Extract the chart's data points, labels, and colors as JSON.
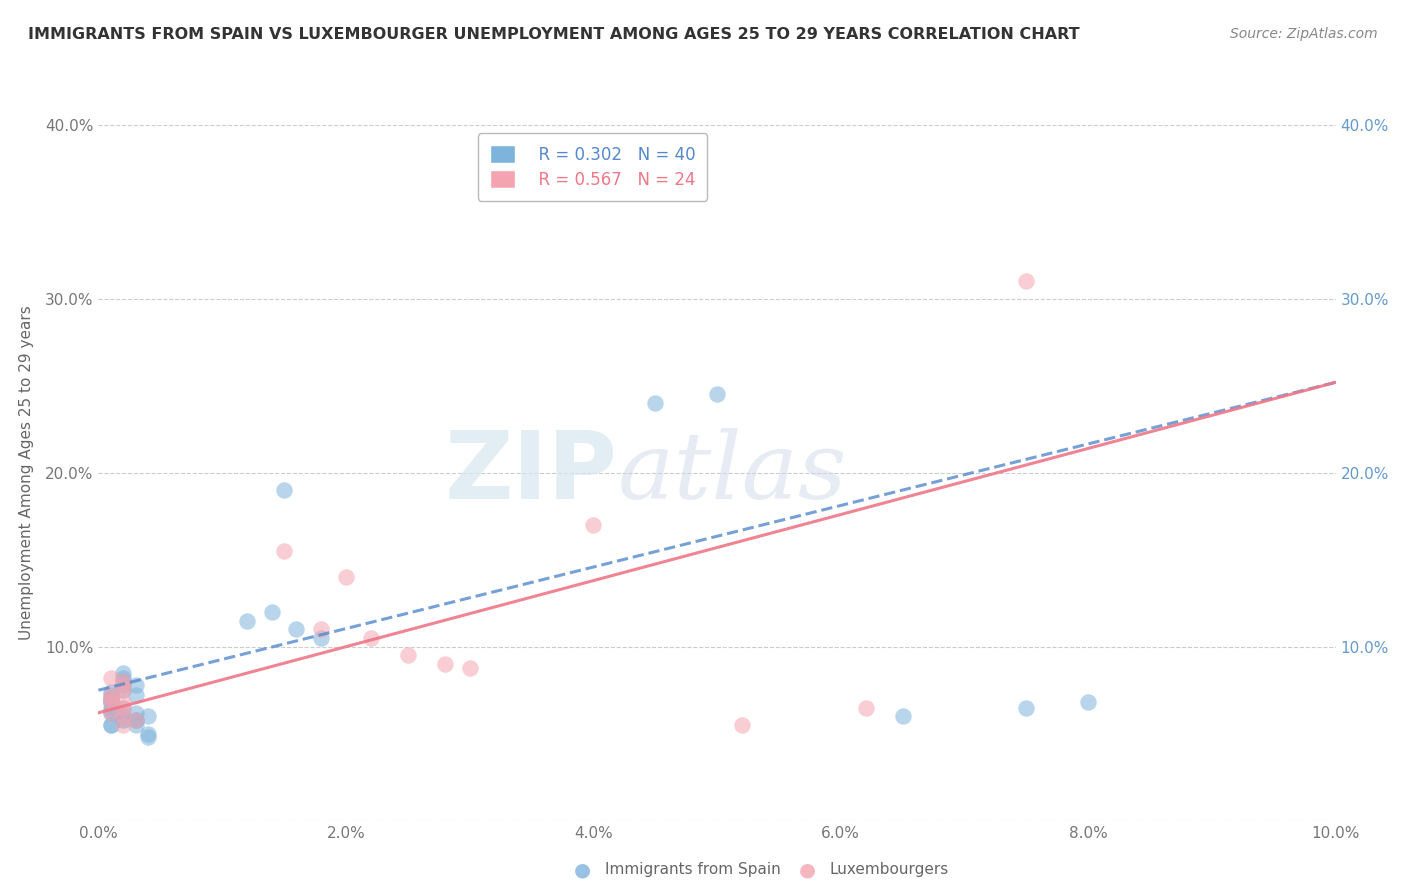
{
  "title": "IMMIGRANTS FROM SPAIN VS LUXEMBOURGER UNEMPLOYMENT AMONG AGES 25 TO 29 YEARS CORRELATION CHART",
  "source": "Source: ZipAtlas.com",
  "ylabel": "Unemployment Among Ages 25 to 29 years",
  "xlabel_blue": "Immigrants from Spain",
  "xlabel_pink": "Luxembourgers",
  "xlim": [
    0.0,
    0.1
  ],
  "ylim": [
    -0.02,
    0.42
  ],
  "plot_ylim": [
    0.0,
    0.4
  ],
  "xticks": [
    0.0,
    0.02,
    0.04,
    0.06,
    0.08,
    0.1
  ],
  "xtick_labels": [
    "0.0%",
    "2.0%",
    "4.0%",
    "6.0%",
    "8.0%",
    "10.0%"
  ],
  "yticks": [
    0.0,
    0.1,
    0.2,
    0.3,
    0.4
  ],
  "ytick_labels_left": [
    "",
    "10.0%",
    "20.0%",
    "30.0%",
    "40.0%"
  ],
  "ytick_labels_right": [
    "",
    "10.0%",
    "20.0%",
    "30.0%",
    "40.0%"
  ],
  "legend_blue_r": "R = 0.302",
  "legend_blue_n": "N = 40",
  "legend_pink_r": "R = 0.567",
  "legend_pink_n": "N = 24",
  "blue_color": "#7EB3DC",
  "pink_color": "#F4A4B0",
  "blue_line_color": "#5588CC",
  "pink_line_color": "#EE7788",
  "watermark_zip": "ZIP",
  "watermark_atlas": "atlas",
  "background_color": "#FFFFFF",
  "blue_scatter_x": [
    0.001,
    0.001,
    0.002,
    0.002,
    0.001,
    0.003,
    0.002,
    0.001,
    0.002,
    0.001,
    0.002,
    0.003,
    0.001,
    0.002,
    0.001,
    0.001,
    0.002,
    0.001,
    0.002,
    0.001,
    0.003,
    0.002,
    0.001,
    0.003,
    0.002,
    0.004,
    0.003,
    0.004,
    0.004,
    0.003,
    0.015,
    0.012,
    0.014,
    0.016,
    0.018,
    0.045,
    0.05,
    0.075,
    0.065,
    0.08
  ],
  "blue_scatter_y": [
    0.072,
    0.068,
    0.075,
    0.08,
    0.065,
    0.078,
    0.082,
    0.07,
    0.085,
    0.074,
    0.078,
    0.072,
    0.068,
    0.065,
    0.07,
    0.063,
    0.06,
    0.055,
    0.058,
    0.062,
    0.062,
    0.058,
    0.055,
    0.058,
    0.06,
    0.06,
    0.055,
    0.05,
    0.048,
    0.058,
    0.19,
    0.115,
    0.12,
    0.11,
    0.105,
    0.24,
    0.245,
    0.065,
    0.06,
    0.068
  ],
  "pink_scatter_x": [
    0.001,
    0.001,
    0.002,
    0.002,
    0.001,
    0.002,
    0.001,
    0.002,
    0.002,
    0.001,
    0.002,
    0.003,
    0.002,
    0.015,
    0.018,
    0.02,
    0.022,
    0.025,
    0.028,
    0.03,
    0.04,
    0.075,
    0.062,
    0.052
  ],
  "pink_scatter_y": [
    0.072,
    0.068,
    0.075,
    0.08,
    0.082,
    0.078,
    0.07,
    0.065,
    0.068,
    0.062,
    0.06,
    0.058,
    0.055,
    0.155,
    0.11,
    0.14,
    0.105,
    0.095,
    0.09,
    0.088,
    0.17,
    0.31,
    0.065,
    0.055
  ],
  "blue_line_x0": 0.0,
  "blue_line_y0": 0.075,
  "blue_line_x1": 0.1,
  "blue_line_y1": 0.252,
  "pink_line_x0": 0.0,
  "pink_line_y0": 0.062,
  "pink_line_x1": 0.1,
  "pink_line_y1": 0.252
}
